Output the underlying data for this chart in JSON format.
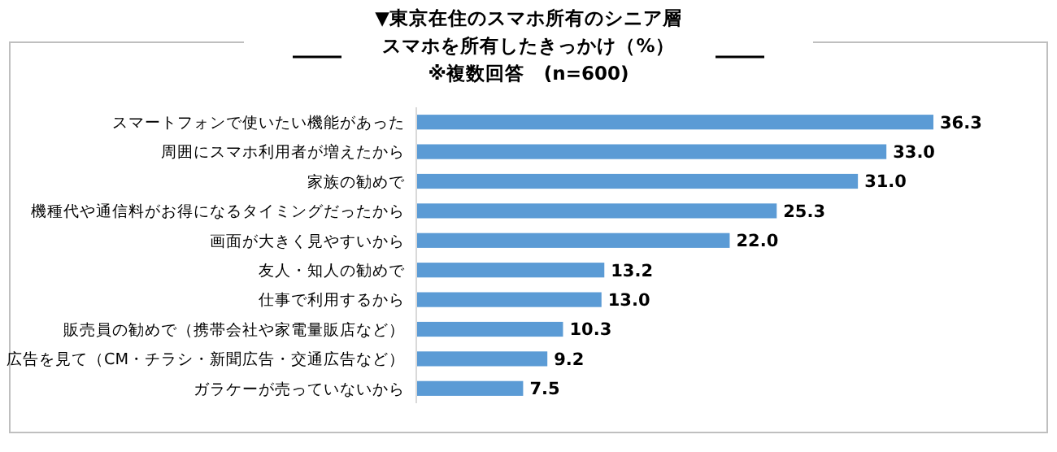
{
  "chart_data": {
    "type": "bar",
    "orientation": "horizontal",
    "title": "▼東京在住のスマホ所有のシニア層",
    "subtitle": "スマホを所有したきっかけ（%）",
    "annotations": [
      "※複数回答　(n=600)"
    ],
    "categories": [
      "スマートフォンで使いたい機能があった",
      "周囲にスマホ利用者が増えたから",
      "家族の勧めで",
      "機種代や通信料がお得になるタイミングだったから",
      "画面が大きく見やすいから",
      "友人・知人の勧めで",
      "仕事で利用するから",
      "販売員の勧めで（携帯会社や家電量販店など）",
      "広告を見て（CM・チラシ・新聞広告・交通広告など）",
      "ガラケーが売っていないから"
    ],
    "values": [
      36.3,
      33.0,
      31.0,
      25.3,
      22.0,
      13.2,
      13.0,
      10.3,
      9.2,
      7.5
    ],
    "value_labels": [
      "36.3",
      "33.0",
      "31.0",
      "25.3",
      "22.0",
      "13.2",
      "13.0",
      "10.3",
      "9.2",
      "7.5"
    ],
    "color": "#5b9bd5"
  }
}
